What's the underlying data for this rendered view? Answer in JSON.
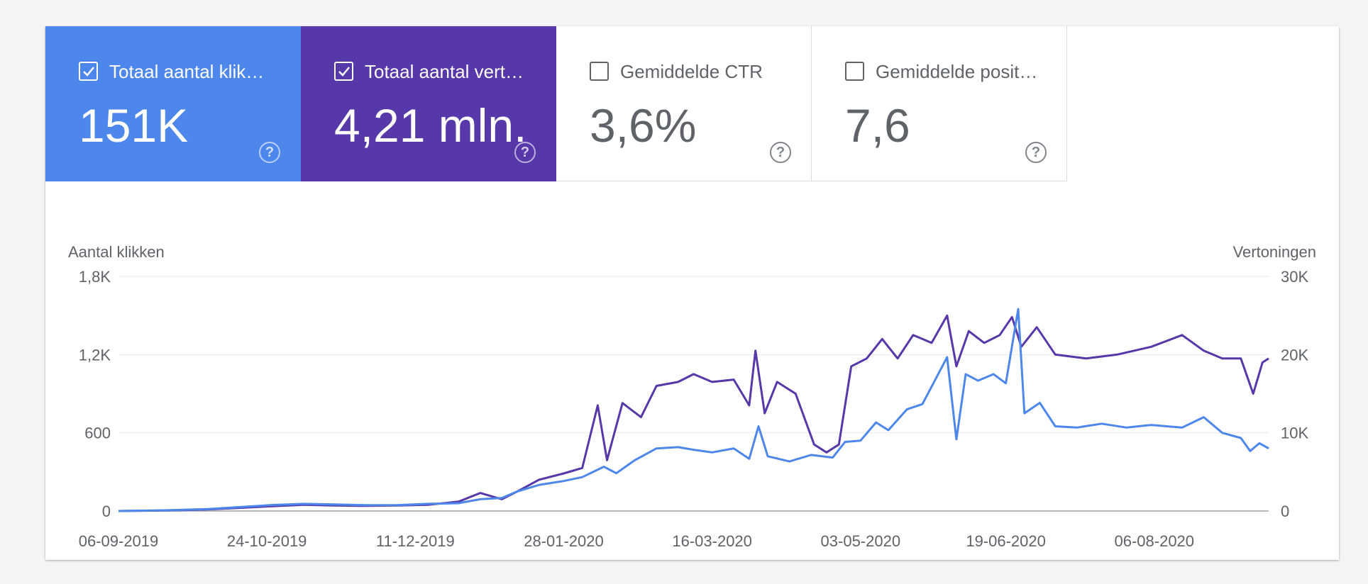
{
  "metrics": [
    {
      "label": "Totaal aantal klik…",
      "value": "151K",
      "checked": true,
      "color": "#4e87ec",
      "help": "?"
    },
    {
      "label": "Totaal aantal vert…",
      "value": "4,21 mln.",
      "checked": true,
      "color": "#5638a9",
      "help": "?"
    },
    {
      "label": "Gemiddelde CTR",
      "value": "3,6%",
      "checked": false,
      "help": "?"
    },
    {
      "label": "Gemiddelde posit…",
      "value": "7,6",
      "checked": false,
      "help": "?"
    }
  ],
  "chart_data": {
    "type": "line",
    "left_axis_title": "Aantal klikken",
    "right_axis_title": "Vertoningen",
    "left_ticks": [
      "0",
      "600",
      "1,2K",
      "1,8K"
    ],
    "right_ticks": [
      "0",
      "10K",
      "20K",
      "30K"
    ],
    "ylim_left": [
      0,
      1800
    ],
    "ylim_right": [
      0,
      30000
    ],
    "x_start": "2019-09-06",
    "x_end": "2020-09-12",
    "x_ticks": [
      "06-09-2019",
      "24-10-2019",
      "11-12-2019",
      "28-01-2020",
      "16-03-2020",
      "03-05-2020",
      "19-06-2020",
      "06-08-2020"
    ],
    "grid": true,
    "series": [
      {
        "axis": "left",
        "color": "#4e87ec",
        "points": [
          [
            "2019-09-06",
            0
          ],
          [
            "2019-09-20",
            5
          ],
          [
            "2019-10-05",
            15
          ],
          [
            "2019-10-15",
            30
          ],
          [
            "2019-10-25",
            45
          ],
          [
            "2019-11-05",
            55
          ],
          [
            "2019-11-15",
            50
          ],
          [
            "2019-11-25",
            45
          ],
          [
            "2019-12-05",
            45
          ],
          [
            "2019-12-15",
            55
          ],
          [
            "2019-12-25",
            60
          ],
          [
            "2020-01-01",
            90
          ],
          [
            "2020-01-08",
            100
          ],
          [
            "2020-01-13",
            150
          ],
          [
            "2020-01-20",
            200
          ],
          [
            "2020-01-28",
            230
          ],
          [
            "2020-02-03",
            260
          ],
          [
            "2020-02-10",
            340
          ],
          [
            "2020-02-14",
            290
          ],
          [
            "2020-02-20",
            390
          ],
          [
            "2020-02-27",
            480
          ],
          [
            "2020-03-05",
            490
          ],
          [
            "2020-03-10",
            470
          ],
          [
            "2020-03-16",
            450
          ],
          [
            "2020-03-23",
            480
          ],
          [
            "2020-03-28",
            400
          ],
          [
            "2020-03-31",
            650
          ],
          [
            "2020-04-03",
            420
          ],
          [
            "2020-04-10",
            380
          ],
          [
            "2020-04-17",
            430
          ],
          [
            "2020-04-24",
            410
          ],
          [
            "2020-04-28",
            530
          ],
          [
            "2020-05-03",
            540
          ],
          [
            "2020-05-08",
            680
          ],
          [
            "2020-05-12",
            620
          ],
          [
            "2020-05-18",
            780
          ],
          [
            "2020-05-23",
            820
          ],
          [
            "2020-05-27",
            1000
          ],
          [
            "2020-05-31",
            1180
          ],
          [
            "2020-06-03",
            550
          ],
          [
            "2020-06-06",
            1050
          ],
          [
            "2020-06-10",
            1000
          ],
          [
            "2020-06-15",
            1050
          ],
          [
            "2020-06-19",
            980
          ],
          [
            "2020-06-23",
            1550
          ],
          [
            "2020-06-25",
            750
          ],
          [
            "2020-06-30",
            830
          ],
          [
            "2020-07-05",
            650
          ],
          [
            "2020-07-12",
            640
          ],
          [
            "2020-07-20",
            670
          ],
          [
            "2020-07-28",
            640
          ],
          [
            "2020-08-05",
            660
          ],
          [
            "2020-08-15",
            640
          ],
          [
            "2020-08-22",
            720
          ],
          [
            "2020-08-28",
            600
          ],
          [
            "2020-09-03",
            560
          ],
          [
            "2020-09-06",
            460
          ],
          [
            "2020-09-09",
            520
          ],
          [
            "2020-09-12",
            480
          ]
        ]
      },
      {
        "axis": "right",
        "color": "#5638a9",
        "points": [
          [
            "2019-09-06",
            0
          ],
          [
            "2019-09-20",
            50
          ],
          [
            "2019-10-05",
            200
          ],
          [
            "2019-10-15",
            400
          ],
          [
            "2019-10-25",
            600
          ],
          [
            "2019-11-05",
            800
          ],
          [
            "2019-11-15",
            700
          ],
          [
            "2019-11-25",
            650
          ],
          [
            "2019-12-05",
            700
          ],
          [
            "2019-12-15",
            800
          ],
          [
            "2019-12-25",
            1200
          ],
          [
            "2020-01-01",
            2300
          ],
          [
            "2020-01-08",
            1500
          ],
          [
            "2020-01-13",
            2500
          ],
          [
            "2020-01-20",
            4000
          ],
          [
            "2020-01-28",
            4800
          ],
          [
            "2020-02-03",
            5500
          ],
          [
            "2020-02-08",
            13500
          ],
          [
            "2020-02-11",
            6500
          ],
          [
            "2020-02-16",
            13800
          ],
          [
            "2020-02-22",
            12000
          ],
          [
            "2020-02-27",
            16000
          ],
          [
            "2020-03-05",
            16500
          ],
          [
            "2020-03-10",
            17500
          ],
          [
            "2020-03-16",
            16500
          ],
          [
            "2020-03-23",
            16800
          ],
          [
            "2020-03-28",
            13500
          ],
          [
            "2020-03-30",
            20500
          ],
          [
            "2020-04-02",
            12500
          ],
          [
            "2020-04-06",
            16500
          ],
          [
            "2020-04-12",
            15000
          ],
          [
            "2020-04-18",
            8500
          ],
          [
            "2020-04-22",
            7500
          ],
          [
            "2020-04-26",
            8500
          ],
          [
            "2020-04-30",
            18500
          ],
          [
            "2020-05-05",
            19500
          ],
          [
            "2020-05-10",
            22000
          ],
          [
            "2020-05-15",
            19500
          ],
          [
            "2020-05-20",
            22500
          ],
          [
            "2020-05-26",
            21500
          ],
          [
            "2020-05-31",
            25000
          ],
          [
            "2020-06-03",
            18500
          ],
          [
            "2020-06-07",
            23000
          ],
          [
            "2020-06-12",
            21500
          ],
          [
            "2020-06-17",
            22500
          ],
          [
            "2020-06-21",
            24800
          ],
          [
            "2020-06-24",
            21000
          ],
          [
            "2020-06-29",
            23500
          ],
          [
            "2020-07-05",
            20000
          ],
          [
            "2020-07-15",
            19500
          ],
          [
            "2020-07-25",
            20000
          ],
          [
            "2020-08-05",
            21000
          ],
          [
            "2020-08-15",
            22500
          ],
          [
            "2020-08-22",
            20500
          ],
          [
            "2020-08-28",
            19500
          ],
          [
            "2020-09-03",
            19500
          ],
          [
            "2020-09-07",
            15000
          ],
          [
            "2020-09-10",
            19000
          ],
          [
            "2020-09-12",
            19500
          ]
        ]
      }
    ]
  }
}
